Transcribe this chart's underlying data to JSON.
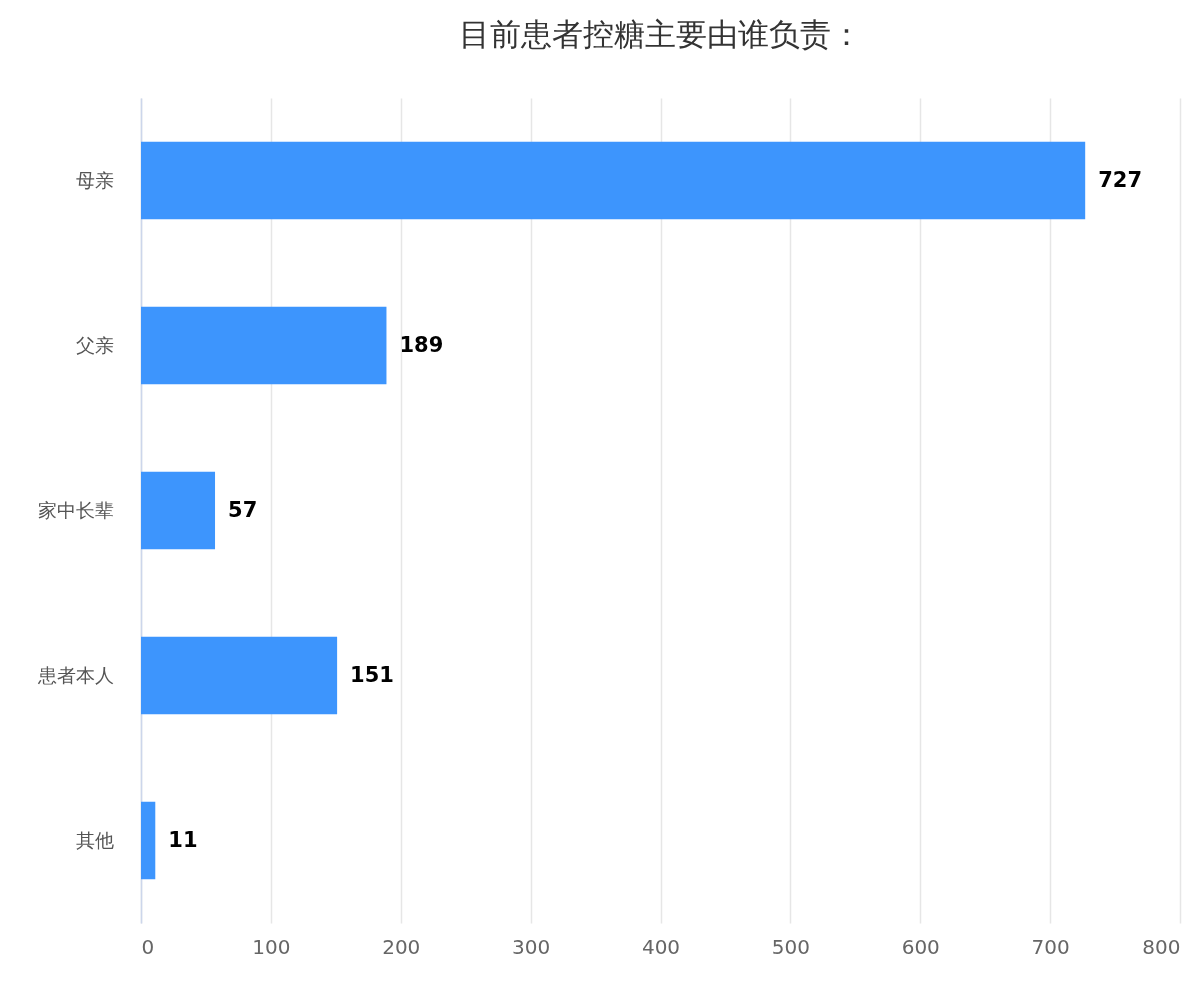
{
  "chart_data": {
    "type": "bar",
    "orientation": "horizontal",
    "title": "目前患者控糖主要由谁负责：",
    "categories": [
      "母亲",
      "父亲",
      "家中长辈",
      "患者本人",
      "其他"
    ],
    "values": [
      727,
      189,
      57,
      151,
      11
    ],
    "color": "#3d95fd",
    "xlim": [
      0,
      800
    ],
    "xticks": [
      0,
      100,
      200,
      300,
      400,
      500,
      600,
      700,
      800
    ],
    "grid": "x",
    "data_labels": true
  }
}
